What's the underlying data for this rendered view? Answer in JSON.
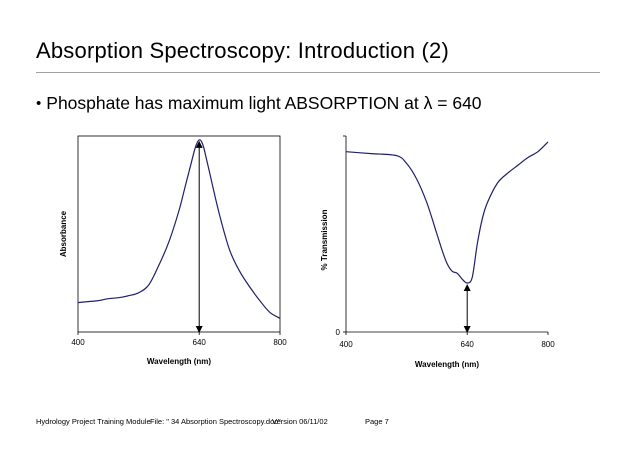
{
  "slide": {
    "title": "Absorption Spectroscopy: Introduction (2)",
    "bullet_symbol": "•",
    "bullet_text": "Phosphate has maximum light ABSORPTION at λ = 640"
  },
  "footer": {
    "module": "Hydrology Project Training Module",
    "file": "File: \" 34 Absorption Spectroscopy.doc\"",
    "version": "Version 06/11/02",
    "page": "Page 7"
  },
  "chart_data": [
    {
      "type": "line",
      "title": "",
      "xlabel": "Wavelength (nm)",
      "ylabel": "Absorbance",
      "xlim": [
        400,
        800
      ],
      "ylim": [
        0,
        1
      ],
      "x_ticks": [
        400,
        640,
        800
      ],
      "y_ticks": [],
      "grid": false,
      "line_color": "#1f1f6b",
      "arrow_at_x": 640,
      "x": [
        400,
        420,
        440,
        460,
        480,
        500,
        520,
        540,
        560,
        580,
        600,
        610,
        620,
        630,
        635,
        640,
        645,
        650,
        660,
        680,
        700,
        720,
        740,
        760,
        780,
        800
      ],
      "y": [
        0.15,
        0.155,
        0.16,
        0.17,
        0.175,
        0.185,
        0.2,
        0.24,
        0.34,
        0.46,
        0.62,
        0.72,
        0.82,
        0.92,
        0.96,
        0.98,
        0.97,
        0.93,
        0.82,
        0.6,
        0.42,
        0.31,
        0.23,
        0.16,
        0.1,
        0.07
      ]
    },
    {
      "type": "line",
      "title": "",
      "xlabel": "Wavelength (nm)",
      "ylabel": "% Transmission",
      "xlim": [
        400,
        800
      ],
      "ylim": [
        0,
        1
      ],
      "x_ticks": [
        400,
        640,
        800
      ],
      "y_ticks": [
        0
      ],
      "grid": false,
      "line_color": "#1f1f6b",
      "arrow_at_x": 640,
      "x": [
        400,
        450,
        500,
        520,
        540,
        560,
        580,
        590,
        600,
        610,
        620,
        630,
        640,
        650,
        660,
        670,
        680,
        700,
        720,
        740,
        760,
        780,
        800
      ],
      "y": [
        0.92,
        0.91,
        0.9,
        0.86,
        0.78,
        0.66,
        0.5,
        0.42,
        0.35,
        0.31,
        0.3,
        0.27,
        0.25,
        0.28,
        0.45,
        0.58,
        0.66,
        0.76,
        0.81,
        0.85,
        0.89,
        0.92,
        0.97
      ]
    }
  ]
}
